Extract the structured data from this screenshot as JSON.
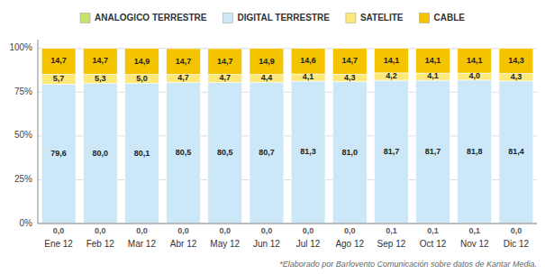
{
  "chart_data": {
    "type": "bar",
    "stacked": true,
    "data_labels": true,
    "grid": true,
    "legend": "top",
    "annotation": "*Elaborado por Barlovento Comunicación sobre datos de Kantar Media.",
    "categories": [
      "Ene 12",
      "Feb 12",
      "Mar 12",
      "Abr 12",
      "May 12",
      "Jun 12",
      "Jul 12",
      "Ago 12",
      "Sep 12",
      "Oct 12",
      "Nov 12",
      "Dic 12"
    ],
    "series": [
      {
        "name": "ANALOGICO TERRESTRE",
        "color": "#c8e06c",
        "values": [
          0.0,
          0.0,
          0.0,
          0.0,
          0.0,
          0.0,
          0.0,
          0.0,
          0.1,
          0.1,
          0.1,
          0.0
        ],
        "value_labels": [
          "0,0",
          "0,0",
          "0,0",
          "0,0",
          "0,0",
          "0,0",
          "0,0",
          "0,0",
          "0,1",
          "0,1",
          "0,1",
          "0,0"
        ]
      },
      {
        "name": "DIGITAL TERRESTRE",
        "color": "#cce8f8",
        "values": [
          79.6,
          80.0,
          80.1,
          80.5,
          80.5,
          80.7,
          81.3,
          81.0,
          81.7,
          81.7,
          81.8,
          81.4
        ],
        "value_labels": [
          "79,6",
          "80,0",
          "80,1",
          "80,5",
          "80,5",
          "80,7",
          "81,3",
          "81,0",
          "81,7",
          "81,7",
          "81,8",
          "81,4"
        ]
      },
      {
        "name": "SATELITE",
        "color": "#fde87a",
        "values": [
          5.7,
          5.3,
          5.0,
          4.7,
          4.7,
          4.4,
          4.1,
          4.3,
          4.2,
          4.1,
          4.0,
          4.3
        ],
        "value_labels": [
          "5,7",
          "5,3",
          "5,0",
          "4,7",
          "4,7",
          "4,4",
          "4,1",
          "4,3",
          "4,2",
          "4,1",
          "4,0",
          "4,3"
        ]
      },
      {
        "name": "CABLE",
        "color": "#f5c400",
        "values": [
          14.7,
          14.7,
          14.9,
          14.7,
          14.7,
          14.9,
          14.6,
          14.7,
          14.1,
          14.1,
          14.1,
          14.3
        ],
        "value_labels": [
          "14,7",
          "14,7",
          "14,9",
          "14,7",
          "14,7",
          "14,9",
          "14,6",
          "14,7",
          "14,1",
          "14,1",
          "14,1",
          "14,3"
        ]
      }
    ],
    "ylim": [
      0,
      105
    ],
    "yticks": [
      {
        "value": 0,
        "label": "0%"
      },
      {
        "value": 25,
        "label": "25%"
      },
      {
        "value": 50,
        "label": "50%"
      },
      {
        "value": 75,
        "label": "75%"
      },
      {
        "value": 100,
        "label": "100%"
      }
    ]
  }
}
